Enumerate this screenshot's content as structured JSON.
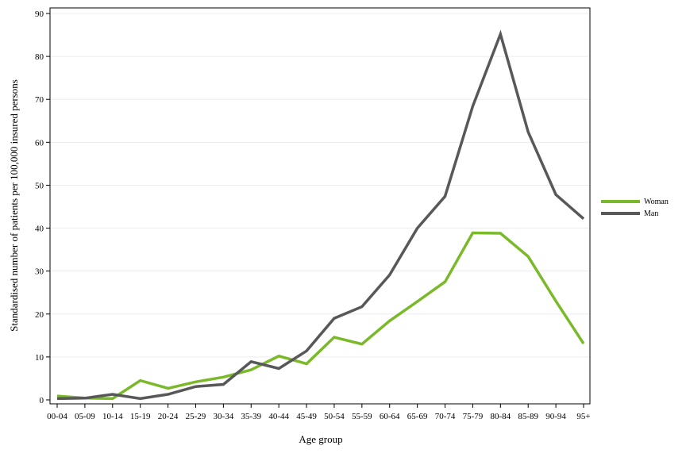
{
  "chart_data": {
    "type": "line",
    "xlabel": "Age group",
    "ylabel": "Standardised number of patients per 100,000 insured persons",
    "ylim": [
      0,
      90
    ],
    "yticks": [
      0,
      10,
      20,
      30,
      40,
      50,
      60,
      70,
      80,
      90
    ],
    "grid": true,
    "legend_position": "right",
    "categories": [
      "00-04",
      "05-09",
      "10-14",
      "15-19",
      "20-24",
      "25-29",
      "30-34",
      "35-39",
      "40-44",
      "45-49",
      "50-54",
      "55-59",
      "60-64",
      "65-69",
      "70-74",
      "75-79",
      "80-84",
      "85-89",
      "90-94",
      "95+"
    ],
    "series": [
      {
        "name": "Woman",
        "color": "#7ab929",
        "values": [
          0.9,
          0.4,
          0.3,
          4.5,
          2.7,
          4.2,
          5.3,
          7.0,
          10.2,
          8.4,
          14.6,
          13.0,
          18.4,
          22.9,
          27.5,
          38.9,
          38.8,
          33.4,
          23.0,
          13.1
        ]
      },
      {
        "name": "Man",
        "color": "#58585a",
        "values": [
          0.3,
          0.4,
          1.3,
          0.3,
          1.3,
          3.1,
          3.6,
          8.9,
          7.3,
          11.4,
          19.0,
          21.7,
          29.1,
          40.0,
          47.4,
          68.4,
          85.2,
          62.4,
          47.8,
          42.2
        ]
      }
    ]
  }
}
